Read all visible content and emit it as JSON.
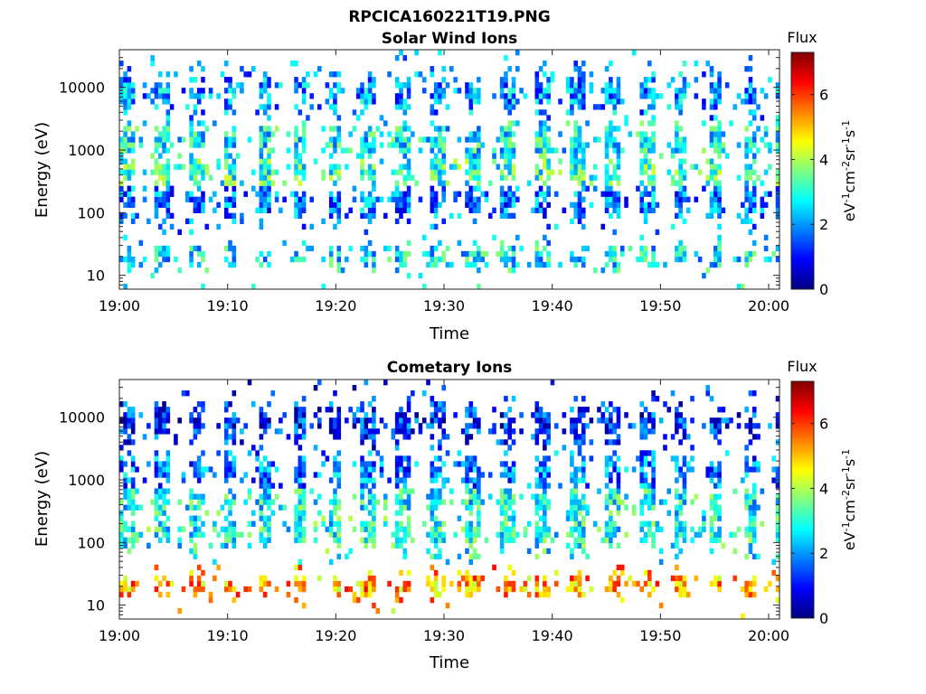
{
  "figure": {
    "title": "RPCICA160221T19.PNG"
  },
  "chart_data": [
    {
      "type": "heatmap",
      "title": "Solar Wind Ions",
      "xlabel": "Time",
      "ylabel": "Energy (eV)",
      "y_scale": "log",
      "x_range": [
        "19:00",
        "20:01"
      ],
      "ylim": [
        6,
        40000
      ],
      "x_ticks": [
        "19:00",
        "19:10",
        "19:20",
        "19:30",
        "19:40",
        "19:50",
        "20:00"
      ],
      "y_ticks": [
        "10",
        "100",
        "1000",
        "10000"
      ],
      "colorbar": {
        "title": "Flux",
        "label": "eV-1cm-2sr-1s-1",
        "range": [
          0,
          7.3
        ],
        "ticks": [
          "0",
          "2",
          "4",
          "6"
        ],
        "colormap": "jet"
      },
      "bands": [
        {
          "energy_eV": 20,
          "mean_flux": 2.6
        },
        {
          "energy_eV": 450,
          "mean_flux": 3.1
        },
        {
          "energy_eV": 1300,
          "mean_flux": 2.7
        },
        {
          "energy_eV": 150,
          "mean_flux": 1.8
        },
        {
          "energy_eV": 8000,
          "mean_flux": 2.0
        }
      ],
      "pulse_period_min": 3.2
    },
    {
      "type": "heatmap",
      "title": "Cometary Ions",
      "xlabel": "Time",
      "ylabel": "Energy (eV)",
      "y_scale": "log",
      "x_range": [
        "19:00",
        "20:01"
      ],
      "ylim": [
        6,
        40000
      ],
      "x_ticks": [
        "19:00",
        "19:10",
        "19:20",
        "19:30",
        "19:40",
        "19:50",
        "20:00"
      ],
      "y_ticks": [
        "10",
        "100",
        "1000",
        "10000"
      ],
      "colorbar": {
        "title": "Flux",
        "label": "eV-1cm-2sr-1s-1",
        "range": [
          0,
          7.3
        ],
        "ticks": [
          "0",
          "2",
          "4",
          "6"
        ],
        "colormap": "jet"
      },
      "bands": [
        {
          "energy_eV": 20,
          "mean_flux": 5.2
        },
        {
          "energy_eV": 450,
          "mean_flux": 2.8
        },
        {
          "energy_eV": 150,
          "mean_flux": 2.9
        },
        {
          "energy_eV": 1300,
          "mean_flux": 1.8
        },
        {
          "energy_eV": 8000,
          "mean_flux": 1.2
        }
      ],
      "pulse_period_min": 3.2
    }
  ]
}
